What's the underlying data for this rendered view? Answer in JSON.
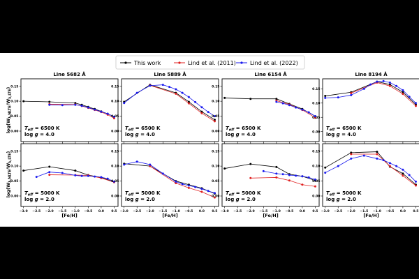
{
  "figure": {
    "legend": [
      {
        "label": "This work",
        "color": "#000000"
      },
      {
        "label": "Lind et al. (2011)",
        "color": "#e02020"
      },
      {
        "label": "Lind et al. (2022)",
        "color": "#1a1aee"
      }
    ],
    "ylabel": "log(W_λ,NLTE/W_λ,LTE)",
    "ylabel_main": "log(W",
    "ylabel_sub1": "λ,NLTE",
    "ylabel_mid": "/W",
    "ylabel_sub2": "λ,LTE",
    "ylabel_end": ")",
    "xlabel": "[Fe/H]"
  },
  "chart_data": [
    {
      "type": "line",
      "row": 0,
      "col": 0,
      "title": "Line 5682 Å",
      "teff_label": "T",
      "teff_sub": "eff",
      "teff_value": " = 6500 K",
      "logg_label": "log ",
      "logg_g": "g",
      "logg_value": " = 4.0",
      "xlim": [
        -3.1,
        0.65
      ],
      "ylim": [
        -0.035,
        0.175
      ],
      "xticks": [
        -3.0,
        -2.5,
        -2.0,
        -1.5,
        -1.0,
        -0.5,
        0.0,
        0.5
      ],
      "xtick_labels": [
        "−3.0",
        "−2.5",
        "−2.0",
        "−1.5",
        "−1.0",
        "−0.5",
        "0.0",
        "0.5"
      ],
      "yticks": [
        0.0,
        0.05,
        0.1,
        0.15
      ],
      "ytick_labels": [
        "0.00",
        "0.05",
        "0.10",
        "0.15"
      ],
      "series": [
        {
          "name": "This work",
          "color": "#000000",
          "x": [
            -3.0,
            -2.0,
            -1.0,
            -0.75,
            -0.5,
            -0.25,
            0.0,
            0.25,
            0.5
          ],
          "y": [
            0.1,
            0.098,
            0.094,
            0.088,
            0.081,
            0.074,
            0.066,
            0.058,
            0.048
          ]
        },
        {
          "name": "Lind et al. (2011)",
          "color": "#e02020",
          "x": [
            -2.0,
            -1.0,
            -0.75,
            -0.5,
            -0.25,
            0.0,
            0.25,
            0.5
          ],
          "y": [
            0.09,
            0.089,
            0.084,
            0.078,
            0.071,
            0.064,
            0.055,
            0.043
          ]
        },
        {
          "name": "Lind et al. (2022)",
          "color": "#1a1aee",
          "x": [
            -2.0,
            -1.5,
            -1.0,
            -0.75,
            -0.5,
            -0.25,
            0.0,
            0.25,
            0.5
          ],
          "y": [
            0.088,
            0.087,
            0.088,
            0.085,
            0.079,
            0.072,
            0.065,
            0.058,
            0.048
          ]
        }
      ]
    },
    {
      "type": "line",
      "row": 0,
      "col": 1,
      "title": "Line 5889 Å",
      "teff_label": "T",
      "teff_sub": "eff",
      "teff_value": " = 6500 K",
      "logg_label": "log ",
      "logg_g": "g",
      "logg_value": " = 4.0",
      "xlim": [
        -3.1,
        0.65
      ],
      "ylim": [
        -0.035,
        0.175
      ],
      "xticks": [
        -3.0,
        -2.5,
        -2.0,
        -1.5,
        -1.0,
        -0.5,
        0.0,
        0.5
      ],
      "xtick_labels": [
        "−3.0",
        "−2.5",
        "−2.0",
        "−1.5",
        "−1.0",
        "−0.5",
        "0.0",
        "0.5"
      ],
      "yticks": [
        0.0,
        0.05,
        0.1,
        0.15
      ],
      "ytick_labels": [
        "0.00",
        "0.05",
        "0.10",
        "0.15"
      ],
      "series": [
        {
          "name": "This work",
          "color": "#000000",
          "x": [
            -3.0,
            -2.0,
            -1.0,
            -0.5,
            0.0,
            0.5
          ],
          "y": [
            0.098,
            0.155,
            0.128,
            0.098,
            0.065,
            0.038
          ]
        },
        {
          "name": "Lind et al. (2011)",
          "color": "#e02020",
          "x": [
            -2.0,
            -1.0,
            -0.5,
            0.0,
            0.5
          ],
          "y": [
            0.153,
            0.125,
            0.093,
            0.06,
            0.033
          ]
        },
        {
          "name": "Lind et al. (2022)",
          "color": "#1a1aee",
          "x": [
            -3.0,
            -2.5,
            -2.0,
            -1.5,
            -1.25,
            -1.0,
            -0.75,
            -0.5,
            -0.25,
            0.0,
            0.25,
            0.5
          ],
          "y": [
            0.094,
            0.128,
            0.152,
            0.155,
            0.148,
            0.14,
            0.128,
            0.114,
            0.097,
            0.08,
            0.064,
            0.05
          ]
        }
      ]
    },
    {
      "type": "line",
      "row": 0,
      "col": 2,
      "title": "Line 6154 Å",
      "teff_label": "T",
      "teff_sub": "eff",
      "teff_value": " = 6500 K",
      "logg_label": "log ",
      "logg_g": "g",
      "logg_value": " = 4.0",
      "xlim": [
        -3.1,
        0.65
      ],
      "ylim": [
        -0.035,
        0.175
      ],
      "xticks": [
        -3.0,
        -2.5,
        -2.0,
        -1.5,
        -1.0,
        -0.5,
        0.0,
        0.5
      ],
      "xtick_labels": [
        "−3.0",
        "−2.5",
        "−2.0",
        "−1.5",
        "−1.0",
        "−0.5",
        "0.0",
        "0.5"
      ],
      "yticks": [
        0.0,
        0.05,
        0.1,
        0.15
      ],
      "ytick_labels": [
        "0.00",
        "0.05",
        "0.10",
        "0.15"
      ],
      "series": [
        {
          "name": "This work",
          "color": "#000000",
          "x": [
            -3.0,
            -2.0,
            -1.0,
            -0.5,
            0.0,
            0.5
          ],
          "y": [
            0.111,
            0.108,
            0.108,
            0.091,
            0.074,
            0.05
          ]
        },
        {
          "name": "Lind et al. (2011)",
          "color": "#e02020",
          "x": [
            -1.0,
            -0.5,
            0.0,
            0.5
          ],
          "y": [
            0.102,
            0.089,
            0.071,
            0.045
          ]
        },
        {
          "name": "Lind et al. (2022)",
          "color": "#1a1aee",
          "x": [
            -1.0,
            -0.75,
            -0.5,
            -0.25,
            0.0,
            0.25,
            0.5
          ],
          "y": [
            0.098,
            0.093,
            0.087,
            0.079,
            0.072,
            0.063,
            0.05
          ]
        }
      ]
    },
    {
      "type": "line",
      "row": 0,
      "col": 3,
      "title": "Line 8194 Å",
      "teff_label": "T",
      "teff_sub": "eff",
      "teff_value": " = 6500 K",
      "logg_label": "log ",
      "logg_g": "g",
      "logg_value": " = 4.0",
      "xlim": [
        -3.1,
        0.65
      ],
      "ylim": [
        -0.035,
        0.185
      ],
      "xticks": [
        -3.0,
        -2.5,
        -2.0,
        -1.5,
        -1.0,
        -0.5,
        0.0,
        0.5
      ],
      "xtick_labels": [
        "−3.0",
        "−2.5",
        "−2.0",
        "−1.5",
        "−1.0",
        "−0.5",
        "0.0",
        "0.5"
      ],
      "yticks": [
        0.0,
        0.05,
        0.1,
        0.15
      ],
      "ytick_labels": [
        "0.00",
        "0.05",
        "0.10",
        "0.15"
      ],
      "series": [
        {
          "name": "This work",
          "color": "#000000",
          "x": [
            -3.0,
            -2.0,
            -1.0,
            -0.5,
            0.0,
            0.5
          ],
          "y": [
            0.125,
            0.138,
            0.175,
            0.165,
            0.138,
            0.095
          ]
        },
        {
          "name": "Lind et al. (2011)",
          "color": "#e02020",
          "x": [
            -2.0,
            -1.0,
            -0.5,
            0.0,
            0.5
          ],
          "y": [
            0.135,
            0.172,
            0.16,
            0.132,
            0.09
          ]
        },
        {
          "name": "Lind et al. (2022)",
          "color": "#1a1aee",
          "x": [
            -3.0,
            -2.5,
            -2.0,
            -1.5,
            -1.25,
            -1.0,
            -0.75,
            -0.5,
            -0.25,
            0.0,
            0.25,
            0.5
          ],
          "y": [
            0.118,
            0.12,
            0.128,
            0.15,
            0.165,
            0.175,
            0.177,
            0.172,
            0.16,
            0.145,
            0.122,
            0.1
          ]
        }
      ]
    },
    {
      "type": "line",
      "row": 1,
      "col": 0,
      "title": "",
      "teff_label": "T",
      "teff_sub": "eff",
      "teff_value": " = 5000 K",
      "logg_label": "log ",
      "logg_g": "g",
      "logg_value": " = 2.0",
      "xlim": [
        -3.1,
        0.65
      ],
      "ylim": [
        -0.035,
        0.175
      ],
      "xticks": [
        -3.0,
        -2.5,
        -2.0,
        -1.5,
        -1.0,
        -0.5,
        0.0,
        0.5
      ],
      "xtick_labels": [
        "−3.0",
        "−2.5",
        "−2.0",
        "−1.5",
        "−1.0",
        "−0.5",
        "0.0",
        "0.5"
      ],
      "yticks": [
        0.0,
        0.05,
        0.1,
        0.15
      ],
      "ytick_labels": [
        "0.00",
        "0.05",
        "0.10",
        "0.15"
      ],
      "series": [
        {
          "name": "This work",
          "color": "#000000",
          "x": [
            -3.0,
            -2.0,
            -1.0,
            -0.5,
            0.0,
            0.5
          ],
          "y": [
            0.085,
            0.098,
            0.085,
            0.07,
            0.062,
            0.047
          ]
        },
        {
          "name": "Lind et al. (2011)",
          "color": "#e02020",
          "x": [
            -2.0,
            -1.0,
            -0.5,
            0.0,
            0.5
          ],
          "y": [
            0.071,
            0.07,
            0.069,
            0.06,
            0.046
          ]
        },
        {
          "name": "Lind et al. (2022)",
          "color": "#1a1aee",
          "x": [
            -2.5,
            -2.0,
            -1.5,
            -1.0,
            -0.75,
            -0.5,
            -0.25,
            0.0,
            0.25,
            0.5
          ],
          "y": [
            0.064,
            0.08,
            0.077,
            0.069,
            0.067,
            0.067,
            0.065,
            0.063,
            0.058,
            0.048
          ]
        }
      ]
    },
    {
      "type": "line",
      "row": 1,
      "col": 1,
      "title": "",
      "teff_label": "T",
      "teff_sub": "eff",
      "teff_value": " = 5000 K",
      "logg_label": "log ",
      "logg_g": "g",
      "logg_value": " = 2.0",
      "xlim": [
        -3.1,
        0.65
      ],
      "ylim": [
        -0.035,
        0.175
      ],
      "xticks": [
        -3.0,
        -2.5,
        -2.0,
        -1.5,
        -1.0,
        -0.5,
        0.0,
        0.5
      ],
      "xtick_labels": [
        "−3.0",
        "−2.5",
        "−2.0",
        "−1.5",
        "−1.0",
        "−0.5",
        "0.0",
        "0.5"
      ],
      "yticks": [
        0.0,
        0.05,
        0.1,
        0.15
      ],
      "ytick_labels": [
        "0.00",
        "0.05",
        "0.10",
        "0.15"
      ],
      "series": [
        {
          "name": "This work",
          "color": "#000000",
          "x": [
            -3.0,
            -2.0,
            -1.0,
            -0.5,
            0.0,
            0.5
          ],
          "y": [
            0.108,
            0.1,
            0.05,
            0.038,
            0.026,
            0.008
          ]
        },
        {
          "name": "Lind et al. (2011)",
          "color": "#e02020",
          "x": [
            -2.0,
            -1.0,
            -0.5,
            0.0,
            0.5
          ],
          "y": [
            0.1,
            0.043,
            0.027,
            0.014,
            -0.005
          ]
        },
        {
          "name": "Lind et al. (2022)",
          "color": "#1a1aee",
          "x": [
            -3.0,
            -2.5,
            -2.0,
            -1.5,
            -1.0,
            -0.75,
            -0.5,
            -0.25,
            0.0,
            0.25,
            0.5
          ],
          "y": [
            0.105,
            0.115,
            0.105,
            0.075,
            0.048,
            0.04,
            0.035,
            0.03,
            0.024,
            0.017,
            0.01
          ]
        }
      ]
    },
    {
      "type": "line",
      "row": 1,
      "col": 2,
      "title": "",
      "teff_label": "T",
      "teff_sub": "eff",
      "teff_value": " = 5000 K",
      "logg_label": "log ",
      "logg_g": "g",
      "logg_value": " = 2.0",
      "xlim": [
        -3.1,
        0.65
      ],
      "ylim": [
        -0.035,
        0.175
      ],
      "xticks": [
        -3.0,
        -2.5,
        -2.0,
        -1.5,
        -1.0,
        -0.5,
        0.0,
        0.5
      ],
      "xtick_labels": [
        "−3.0",
        "−2.5",
        "−2.0",
        "−1.5",
        "−1.0",
        "−0.5",
        "0.0",
        "0.5"
      ],
      "yticks": [
        0.0,
        0.05,
        0.1,
        0.15
      ],
      "ytick_labels": [
        "0.00",
        "0.05",
        "0.10",
        "0.15"
      ],
      "series": [
        {
          "name": "This work",
          "color": "#000000",
          "x": [
            -3.0,
            -2.0,
            -1.0,
            -0.5,
            0.0,
            0.5
          ],
          "y": [
            0.092,
            0.107,
            0.097,
            0.073,
            0.066,
            0.052
          ]
        },
        {
          "name": "Lind et al. (2011)",
          "color": "#e02020",
          "x": [
            -2.0,
            -1.0,
            -0.5,
            0.0,
            0.5
          ],
          "y": [
            0.06,
            0.062,
            0.052,
            0.038,
            0.032
          ]
        },
        {
          "name": "Lind et al. (2022)",
          "color": "#1a1aee",
          "x": [
            -1.5,
            -1.0,
            -0.75,
            -0.5,
            -0.25,
            0.0,
            0.25,
            0.5
          ],
          "y": [
            0.083,
            0.075,
            0.073,
            0.07,
            0.068,
            0.066,
            0.062,
            0.055
          ]
        }
      ]
    },
    {
      "type": "line",
      "row": 1,
      "col": 3,
      "title": "",
      "teff_label": "T",
      "teff_sub": "eff",
      "teff_value": " = 5000 K",
      "logg_label": "log ",
      "logg_g": "g",
      "logg_value": " = 2.0",
      "xlim": [
        -3.1,
        0.65
      ],
      "ylim": [
        -0.035,
        0.175
      ],
      "xticks": [
        -3.0,
        -2.5,
        -2.0,
        -1.5,
        -1.0,
        -0.5,
        0.0,
        0.5
      ],
      "xtick_labels": [
        "−3.0",
        "−2.5",
        "−2.0",
        "−1.5",
        "−1.0",
        "−0.5",
        "0.0",
        "0.5"
      ],
      "yticks": [
        0.0,
        0.05,
        0.1,
        0.15
      ],
      "ytick_labels": [
        "0.00",
        "0.05",
        "0.10",
        "0.15"
      ],
      "series": [
        {
          "name": "This work",
          "color": "#000000",
          "x": [
            -3.0,
            -2.0,
            -1.0,
            -0.5,
            0.0,
            0.5
          ],
          "y": [
            0.095,
            0.145,
            0.148,
            0.098,
            0.075,
            0.038
          ]
        },
        {
          "name": "Lind et al. (2011)",
          "color": "#e02020",
          "x": [
            -2.0,
            -1.0,
            -0.5,
            0.0,
            0.5
          ],
          "y": [
            0.14,
            0.14,
            0.1,
            0.068,
            0.035
          ]
        },
        {
          "name": "Lind et al. (2022)",
          "color": "#1a1aee",
          "x": [
            -3.0,
            -2.5,
            -2.0,
            -1.5,
            -1.0,
            -0.75,
            -0.5,
            -0.25,
            0.0,
            0.25,
            0.5
          ],
          "y": [
            0.078,
            0.1,
            0.125,
            0.135,
            0.125,
            0.12,
            0.11,
            0.1,
            0.088,
            0.07,
            0.048
          ]
        }
      ]
    }
  ]
}
